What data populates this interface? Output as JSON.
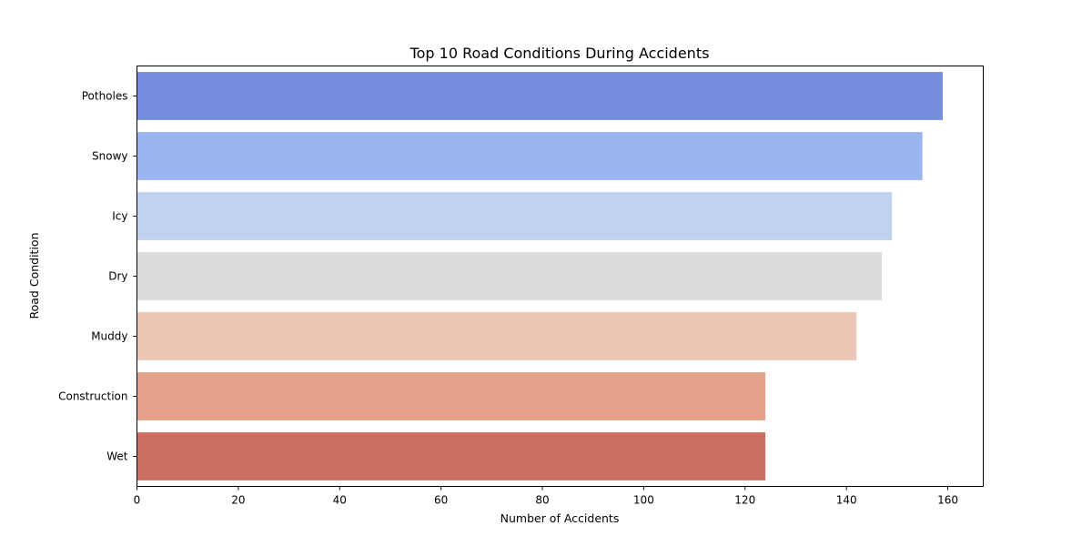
{
  "chart_data": {
    "type": "bar",
    "orientation": "horizontal",
    "title": "Top 10 Road Conditions During Accidents",
    "xlabel": "Number of Accidents",
    "ylabel": "Road Condition",
    "categories": [
      "Potholes",
      "Snowy",
      "Icy",
      "Dry",
      "Muddy",
      "Construction",
      "Wet"
    ],
    "values": [
      159,
      155,
      149,
      147,
      142,
      124,
      124
    ],
    "colors": [
      "#748ddc",
      "#9ab5f0",
      "#c1d2f0",
      "#dcdcdc",
      "#ecc6b5",
      "#e5a28b",
      "#cd6e62"
    ],
    "xlim": [
      0,
      167
    ],
    "xticks": [
      0,
      20,
      40,
      60,
      80,
      100,
      120,
      140,
      160
    ],
    "grid": false,
    "legend": "none"
  }
}
